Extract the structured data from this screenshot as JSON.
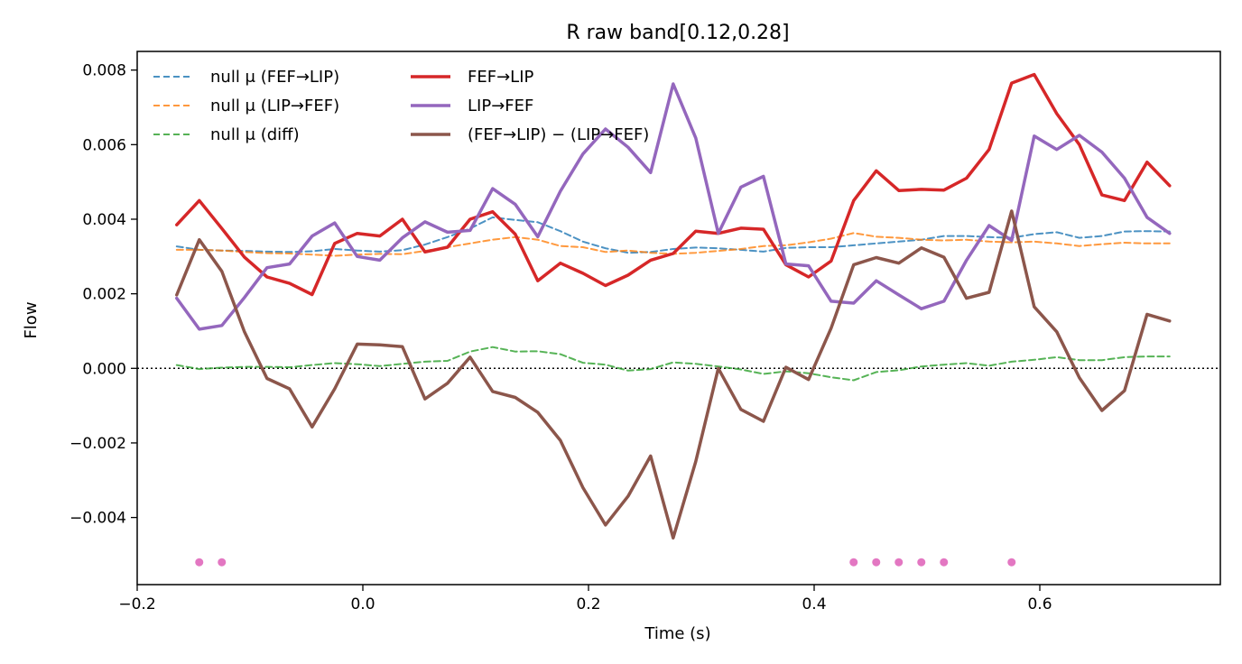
{
  "chart_data": {
    "type": "line",
    "title": "R raw   band[0.12,0.28]",
    "xlabel": "Time (s)",
    "ylabel": "Flow",
    "xlim": [
      -0.2,
      0.76
    ],
    "ylim": [
      -0.0058,
      0.0085
    ],
    "xticks": [
      -0.2,
      0.0,
      0.2,
      0.4,
      0.6
    ],
    "xtick_labels": [
      "−0.2",
      "0.0",
      "0.2",
      "0.4",
      "0.6"
    ],
    "yticks": [
      -0.004,
      -0.002,
      0.0,
      0.002,
      0.004,
      0.006,
      0.008
    ],
    "ytick_labels": [
      "−0.004",
      "−0.002",
      "0.000",
      "0.002",
      "0.004",
      "0.006",
      "0.008"
    ],
    "zero_line": true,
    "grid": false,
    "legend_position": "upper-left",
    "x": [
      -0.165,
      -0.145,
      -0.125,
      -0.105,
      -0.085,
      -0.065,
      -0.045,
      -0.025,
      -0.005,
      0.015,
      0.035,
      0.055,
      0.075,
      0.095,
      0.115,
      0.135,
      0.155,
      0.175,
      0.195,
      0.215,
      0.235,
      0.255,
      0.275,
      0.295,
      0.315,
      0.335,
      0.355,
      0.375,
      0.395,
      0.415,
      0.435,
      0.455,
      0.475,
      0.495,
      0.515,
      0.535,
      0.555,
      0.575,
      0.595,
      0.615,
      0.635,
      0.655,
      0.675,
      0.695,
      0.715
    ],
    "series": [
      {
        "name": "null μ (FEF→LIP)",
        "color": "#1f77b4",
        "style": "dashed",
        "values": [
          0.00327,
          0.00318,
          0.00316,
          0.00315,
          0.00313,
          0.00312,
          0.00314,
          0.0032,
          0.00316,
          0.00313,
          0.00317,
          0.00332,
          0.00352,
          0.00375,
          0.00405,
          0.00398,
          0.00392,
          0.00368,
          0.0034,
          0.00322,
          0.0031,
          0.00312,
          0.0032,
          0.00324,
          0.00322,
          0.00318,
          0.00313,
          0.00323,
          0.00325,
          0.00325,
          0.0033,
          0.00335,
          0.0034,
          0.00345,
          0.00355,
          0.00355,
          0.00352,
          0.0035,
          0.0036,
          0.00365,
          0.0035,
          0.00355,
          0.00367,
          0.00368,
          0.00367
        ]
      },
      {
        "name": "null μ (LIP→FEF)",
        "color": "#ff7f0e",
        "style": "dashed",
        "values": [
          0.00318,
          0.00318,
          0.00316,
          0.00312,
          0.00309,
          0.00308,
          0.00305,
          0.00302,
          0.00305,
          0.00307,
          0.00306,
          0.00315,
          0.00325,
          0.00335,
          0.00345,
          0.00352,
          0.00345,
          0.00328,
          0.00325,
          0.00312,
          0.00316,
          0.0031,
          0.00307,
          0.0031,
          0.00315,
          0.0032,
          0.00328,
          0.0033,
          0.00338,
          0.00348,
          0.00363,
          0.00353,
          0.0035,
          0.00345,
          0.00343,
          0.00345,
          0.0034,
          0.00338,
          0.0034,
          0.00335,
          0.00328,
          0.00333,
          0.00337,
          0.00335,
          0.00335
        ]
      },
      {
        "name": "null μ (diff)",
        "color": "#2ca02c",
        "style": "dashed",
        "values": [
          9e-05,
          -2e-05,
          2e-05,
          4e-05,
          4e-05,
          3e-05,
          9e-05,
          0.00014,
          0.00011,
          6e-05,
          0.00012,
          0.00018,
          0.0002,
          0.00045,
          0.00057,
          0.00045,
          0.00046,
          0.00038,
          0.00015,
          0.0001,
          -6e-05,
          -2e-05,
          0.00016,
          0.00012,
          5e-05,
          -3e-05,
          -0.00015,
          -8e-05,
          -0.00013,
          -0.00024,
          -0.00032,
          -0.0001,
          -5e-05,
          5e-05,
          0.0001,
          0.00014,
          7e-05,
          0.00018,
          0.00023,
          0.0003,
          0.00022,
          0.00022,
          0.0003,
          0.00032,
          0.00032
        ]
      },
      {
        "name": "FEF→LIP",
        "color": "#d62728",
        "style": "solid",
        "values": [
          0.00385,
          0.0045,
          0.00375,
          0.00298,
          0.00245,
          0.00228,
          0.00198,
          0.00335,
          0.00362,
          0.00355,
          0.004,
          0.00312,
          0.00325,
          0.004,
          0.0042,
          0.0036,
          0.00235,
          0.00282,
          0.00255,
          0.00222,
          0.0025,
          0.0029,
          0.00308,
          0.00368,
          0.00362,
          0.00376,
          0.00373,
          0.00278,
          0.00245,
          0.00288,
          0.0045,
          0.0053,
          0.00477,
          0.0048,
          0.00478,
          0.0051,
          0.00587,
          0.00765,
          0.00788,
          0.00683,
          0.006,
          0.00465,
          0.0045,
          0.00553,
          0.0049
        ]
      },
      {
        "name": "LIP→FEF",
        "color": "#9467bd",
        "style": "solid",
        "values": [
          0.00188,
          0.00105,
          0.00115,
          0.0019,
          0.0027,
          0.0028,
          0.00355,
          0.0039,
          0.003,
          0.0029,
          0.0035,
          0.00393,
          0.00365,
          0.0037,
          0.00482,
          0.0044,
          0.00353,
          0.00475,
          0.00575,
          0.00642,
          0.00593,
          0.00525,
          0.00763,
          0.00618,
          0.00362,
          0.00486,
          0.00515,
          0.0028,
          0.00275,
          0.0018,
          0.00175,
          0.00235,
          0.00197,
          0.0016,
          0.0018,
          0.0029,
          0.00383,
          0.00343,
          0.00623,
          0.00587,
          0.00625,
          0.0058,
          0.0051,
          0.00405,
          0.00362
        ]
      },
      {
        "name": "(FEF→LIP) − (LIP→FEF)",
        "color": "#8c564b",
        "style": "solid",
        "values": [
          0.00197,
          0.00345,
          0.0026,
          0.00098,
          -0.00027,
          -0.00055,
          -0.00157,
          -0.00055,
          0.00065,
          0.00063,
          0.00058,
          -0.00082,
          -0.0004,
          0.0003,
          -0.00062,
          -0.00078,
          -0.00118,
          -0.00193,
          -0.0032,
          -0.0042,
          -0.00343,
          -0.00235,
          -0.00455,
          -0.0025,
          0.0,
          -0.0011,
          -0.00142,
          3e-05,
          -0.0003,
          0.00108,
          0.00278,
          0.00297,
          0.00282,
          0.00323,
          0.00298,
          0.00188,
          0.00204,
          0.00422,
          0.00165,
          0.00098,
          -0.00025,
          -0.00113,
          -0.0006,
          0.00145,
          0.00127
        ]
      }
    ],
    "significance_markers": {
      "color": "#e377c2",
      "y": -0.0052,
      "x": [
        -0.145,
        -0.125,
        0.435,
        0.455,
        0.475,
        0.495,
        0.515,
        0.575
      ]
    },
    "legend_columns": [
      [
        0,
        1,
        2
      ],
      [
        3,
        4,
        5
      ]
    ]
  }
}
